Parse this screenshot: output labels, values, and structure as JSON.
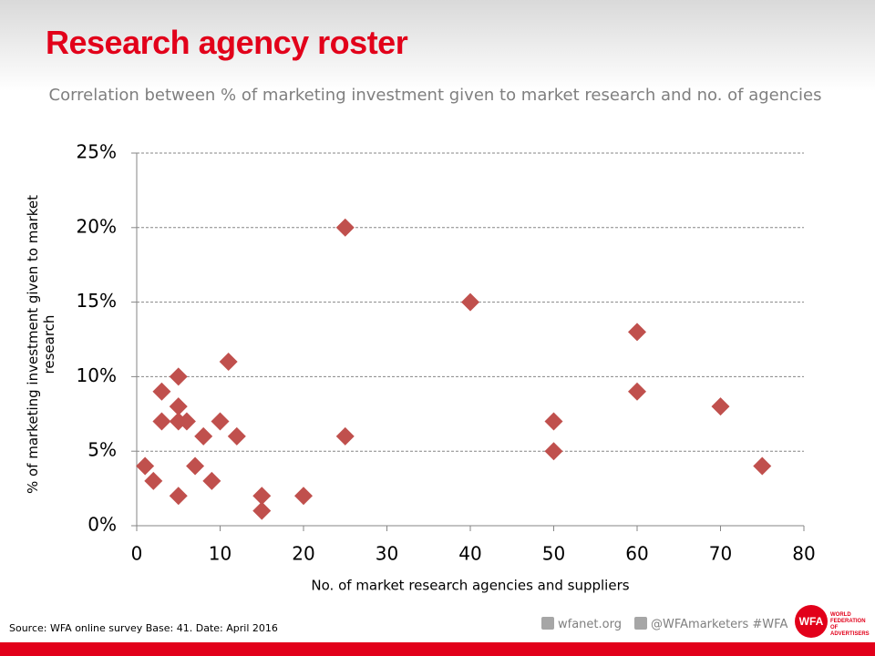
{
  "chart_data": {
    "type": "scatter",
    "title": "Research agency roster",
    "subtitle": "Correlation between % of marketing investment given to market research and no. of agencies",
    "x_label": "No. of market research agencies and suppliers",
    "y_label": "% of marketing investment given to market research",
    "color": "#c0504d",
    "x": [
      1,
      2,
      3,
      3,
      5,
      5,
      5,
      5,
      6,
      7,
      8,
      9,
      10,
      11,
      12,
      15,
      15,
      20,
      25,
      25,
      40,
      50,
      50,
      60,
      60,
      70,
      75
    ],
    "values": [
      4,
      3,
      9,
      7,
      10,
      8,
      7,
      2,
      7,
      4,
      6,
      3,
      7,
      11,
      6,
      2,
      1,
      2,
      20,
      6,
      15,
      7,
      5,
      13,
      9,
      8,
      4
    ],
    "xlim": [
      0,
      80
    ],
    "xticks": [
      0,
      10,
      20,
      30,
      40,
      50,
      60,
      70,
      80
    ],
    "ylim": [
      0,
      25
    ],
    "yticks": [
      {
        "value": 0,
        "label": "0%"
      },
      {
        "value": 5,
        "label": "5%"
      },
      {
        "value": 10,
        "label": "10%"
      },
      {
        "value": 15,
        "label": "15%"
      },
      {
        "value": 20,
        "label": "20%"
      },
      {
        "value": 25,
        "label": "25%"
      }
    ],
    "grid": true
  },
  "footer": {
    "source": "Source: WFA online survey Base: 41. Date: April 2016",
    "website": "wfanet.org",
    "social": "@WFAmarketers #WFA",
    "logo": "WFA",
    "logo_text": "WORLD FEDERATION OF ADVERTISERS"
  }
}
